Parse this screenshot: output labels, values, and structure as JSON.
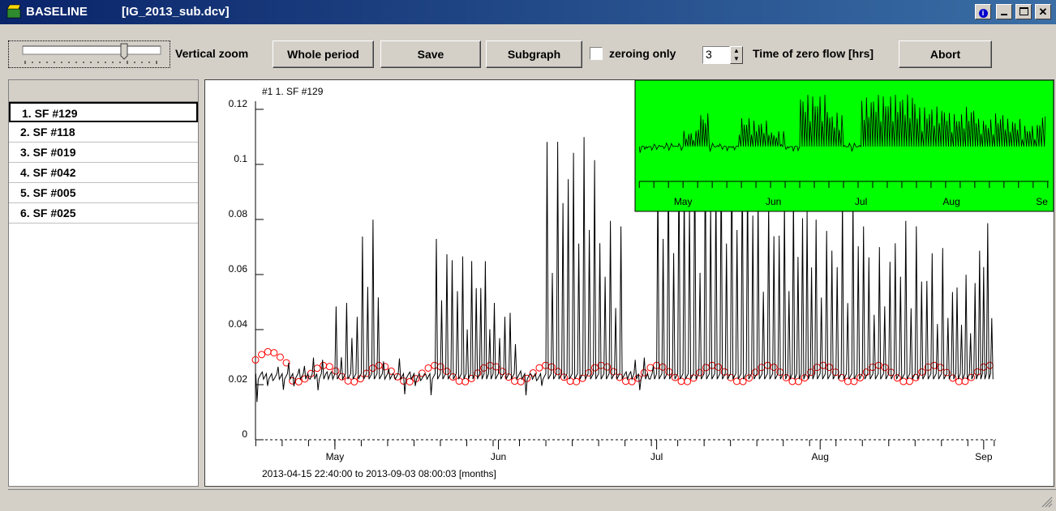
{
  "window": {
    "title": "BASELINE",
    "file": "[IG_2013_sub.dcv]"
  },
  "toolbar": {
    "vertical_zoom": "Vertical zoom",
    "whole_period": "Whole period",
    "save": "Save",
    "subgraph": "Subgraph",
    "zeroing_only": "zeroing only",
    "zero_flow_value": "3",
    "zero_flow_label": "Time of zero flow [hrs]",
    "abort": "Abort"
  },
  "sensors": [
    "1.  SF #129",
    "2.  SF #118",
    "3.  SF #019",
    "4.  SF #042",
    "5.  SF #005",
    "6.  SF #025"
  ],
  "colors": {
    "title_start": "#0a246a",
    "title_end": "#3a6ea5",
    "inset_bg": "#00ff00",
    "baseline": "#ff0000",
    "signal": "#000000"
  },
  "chart_data": {
    "type": "line",
    "series_label": "#1   1.  SF #129",
    "range_text": "2013-04-15 22:40:00 to 2013-09-03 08:00:03   [months]",
    "x_ticks": [
      "May",
      "Jun",
      "Jul",
      "Aug",
      "Sep"
    ],
    "y_ticks": [
      "0",
      "0.02",
      "0.04",
      "0.06",
      "0.08",
      "0.1",
      "0.12"
    ],
    "ylim": [
      0,
      0.12
    ],
    "baseline_level": 0.024,
    "series": [
      {
        "name": "SF #129",
        "x": [
          "2013-04-16",
          "2013-04-20",
          "2013-04-25",
          "2013-05-01",
          "2013-05-06",
          "2013-05-10",
          "2013-05-15",
          "2013-05-20",
          "2013-05-25",
          "2013-05-31",
          "2013-06-05",
          "2013-06-10",
          "2013-06-15",
          "2013-06-20",
          "2013-06-25",
          "2013-07-01",
          "2013-07-05",
          "2013-07-10",
          "2013-07-15",
          "2013-07-20",
          "2013-07-25",
          "2013-07-31",
          "2013-08-05",
          "2013-08-10",
          "2013-08-15",
          "2013-08-20",
          "2013-08-25",
          "2013-08-31"
        ],
        "peaks": [
          0.025,
          0.028,
          0.03,
          0.05,
          0.08,
          0.03,
          0.025,
          0.073,
          0.067,
          0.05,
          0.025,
          0.11,
          0.11,
          0.08,
          0.03,
          0.105,
          0.11,
          0.11,
          0.11,
          0.09,
          0.09,
          0.08,
          0.09,
          0.07,
          0.08,
          0.07,
          0.06,
          0.08
        ]
      }
    ],
    "inset": {
      "x_ticks": [
        "May",
        "Jun",
        "Jul",
        "Aug",
        "Se"
      ]
    }
  }
}
